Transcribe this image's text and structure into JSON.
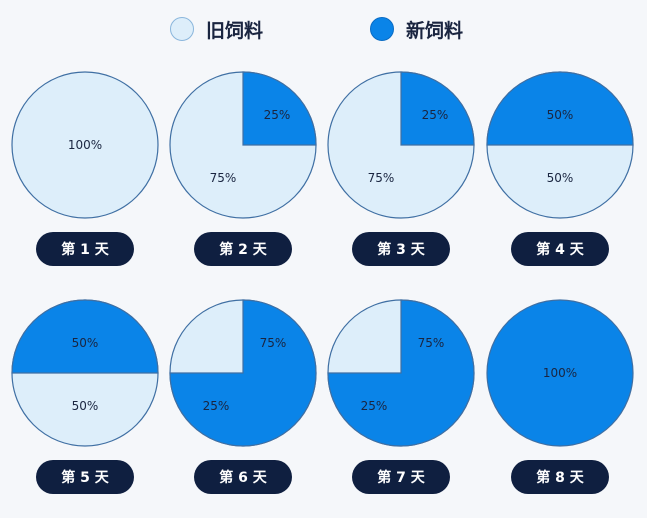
{
  "legend": {
    "old_label": "旧饲料",
    "new_label": "新饲料"
  },
  "colors": {
    "old_feed": "#ddeefa",
    "new_feed": "#0a84e8",
    "outline": "#3f6fa3",
    "day_pill": "#0f1f40"
  },
  "days": [
    {
      "label": "第 1 天",
      "old_percent": 100,
      "new_percent": 0,
      "old_text": "100%",
      "new_text": ""
    },
    {
      "label": "第 2 天",
      "old_percent": 75,
      "new_percent": 25,
      "old_text": "75%",
      "new_text": "25%"
    },
    {
      "label": "第 3 天",
      "old_percent": 75,
      "new_percent": 25,
      "old_text": "75%",
      "new_text": "25%"
    },
    {
      "label": "第 4 天",
      "old_percent": 50,
      "new_percent": 50,
      "old_text": "50%",
      "new_text": "50%"
    },
    {
      "label": "第 5 天",
      "old_percent": 50,
      "new_percent": 50,
      "old_text": "50%",
      "new_text": "50%"
    },
    {
      "label": "第 6 天",
      "old_percent": 25,
      "new_percent": 75,
      "old_text": "25%",
      "new_text": "75%"
    },
    {
      "label": "第 7 天",
      "old_percent": 25,
      "new_percent": 75,
      "old_text": "25%",
      "new_text": "75%"
    },
    {
      "label": "第 8 天",
      "old_percent": 0,
      "new_percent": 100,
      "old_text": "",
      "new_text": "100%"
    }
  ]
}
